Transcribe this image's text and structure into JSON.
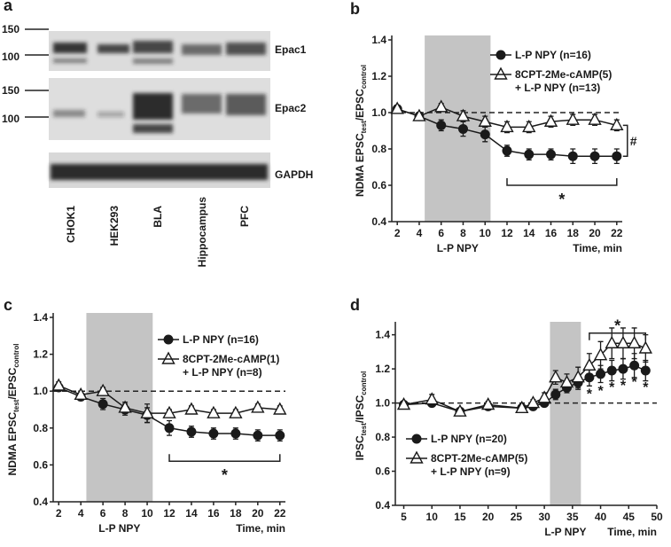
{
  "blot": {
    "panel": "a",
    "markers": [
      "150",
      "100",
      "150",
      "100"
    ],
    "proteins": [
      "Epac1",
      "Epac2",
      "GAPDH"
    ],
    "lanes": [
      "CHOK1",
      "HEK293",
      "BLA",
      "Hippocampus",
      "PFC"
    ]
  },
  "chart_data": [
    {
      "type": "line",
      "panel": "b",
      "ylabel": [
        "NDMA EPSC",
        "test",
        "/EPSC",
        "control"
      ],
      "xlabel_left": "L-P NPY",
      "xlabel_right": "Time, min",
      "xlim": [
        1.5,
        22.5
      ],
      "xticks": [
        2,
        4,
        6,
        8,
        10,
        12,
        14,
        16,
        18,
        20,
        22
      ],
      "ylim": [
        0.4,
        1.4
      ],
      "yticks": [
        0.4,
        0.6,
        0.8,
        {
          "value": 1,
          "label": "1.0"
        },
        1.2,
        1.4
      ],
      "shade": [
        4.5,
        10.5
      ],
      "reference": 1,
      "x": [
        2,
        4,
        6,
        8,
        10,
        12,
        14,
        16,
        18,
        20,
        22
      ],
      "series": [
        {
          "name": [
            "L-P NPY (n=16)"
          ],
          "marker": "circle",
          "color": "#1a1a1a",
          "values": [
            1.02,
            0.98,
            0.93,
            0.91,
            0.88,
            0.79,
            0.77,
            0.77,
            0.76,
            0.76,
            0.76
          ],
          "errors": [
            0.02,
            0.02,
            0.03,
            0.04,
            0.04,
            0.03,
            0.03,
            0.03,
            0.04,
            0.04,
            0.04
          ]
        },
        {
          "name": [
            "8CPT-2Me-cAMP(5)",
            "+ L-P NPY (n=13)"
          ],
          "marker": "triangle",
          "color": "#1a1a1a",
          "values": [
            1.02,
            0.98,
            1.03,
            0.98,
            0.95,
            0.92,
            0.92,
            0.95,
            0.96,
            0.96,
            0.93
          ],
          "errors": [
            0.02,
            0.02,
            0.02,
            0.03,
            0.03,
            0.03,
            0.03,
            0.03,
            0.03,
            0.03,
            0.03
          ]
        }
      ],
      "bracket": {
        "x": [
          12,
          22
        ],
        "label": "*"
      },
      "end_label": "#"
    },
    {
      "type": "line",
      "panel": "c",
      "ylabel": [
        "NDMA EPSC",
        "test",
        "/EPSC",
        "control"
      ],
      "xlabel_left": "L-P NPY",
      "xlabel_right": "Time, min",
      "xlim": [
        1.5,
        22.5
      ],
      "xticks": [
        2,
        4,
        6,
        8,
        10,
        12,
        14,
        16,
        18,
        20,
        22
      ],
      "ylim": [
        0.4,
        1.4
      ],
      "yticks": [
        0.4,
        0.6,
        0.8,
        {
          "value": 1,
          "label": "1.0"
        },
        1.2,
        1.4
      ],
      "shade": [
        4.5,
        10.5
      ],
      "reference": 1,
      "x": [
        2,
        4,
        6,
        8,
        10,
        12,
        14,
        16,
        18,
        20,
        22
      ],
      "series": [
        {
          "name": [
            "L-P NPY (n=16)"
          ],
          "marker": "circle",
          "color": "#1a1a1a",
          "values": [
            1.02,
            0.97,
            0.93,
            0.9,
            0.87,
            0.8,
            0.78,
            0.77,
            0.77,
            0.76,
            0.76
          ],
          "errors": [
            0.02,
            0.02,
            0.03,
            0.03,
            0.04,
            0.04,
            0.03,
            0.03,
            0.03,
            0.03,
            0.03
          ]
        },
        {
          "name": [
            "8CPT-2Me-cAMP(1)",
            "+ L-P NPY (n=8)"
          ],
          "marker": "triangle",
          "color": "#1a1a1a",
          "values": [
            1.03,
            0.98,
            1.0,
            0.91,
            0.88,
            0.88,
            0.9,
            0.88,
            0.88,
            0.91,
            0.9
          ],
          "errors": [
            0.02,
            0.02,
            0.02,
            0.03,
            0.05,
            0.02,
            0.02,
            0.02,
            0.02,
            0.02,
            0.02
          ]
        }
      ],
      "bracket": {
        "x": [
          12,
          22
        ],
        "label": "*"
      }
    },
    {
      "type": "line",
      "panel": "d",
      "ylabel": [
        "IPSC",
        "test",
        "/IPSC",
        "control"
      ],
      "xlabel_left": "L-P NPY",
      "xlabel_right": "Time, min",
      "xlim": [
        3.5,
        50
      ],
      "xticks": [
        5,
        10,
        15,
        20,
        25,
        30,
        35,
        40,
        45,
        50
      ],
      "ylim": [
        0.4,
        1.45
      ],
      "yticks": [
        0.4,
        0.6,
        0.8,
        {
          "value": 1,
          "label": "1.0"
        },
        1.2,
        1.4
      ],
      "shade": [
        31,
        36.5
      ],
      "reference": 1,
      "x": [
        5,
        10,
        15,
        20,
        26,
        28,
        30,
        32,
        34,
        36,
        38,
        40,
        42,
        44,
        46,
        48
      ],
      "series": [
        {
          "name": [
            "L-P NPY (n=20)"
          ],
          "marker": "circle",
          "color": "#1a1a1a",
          "values": [
            0.99,
            1.0,
            0.95,
            0.98,
            0.97,
            0.98,
            1.0,
            1.05,
            1.09,
            1.12,
            1.15,
            1.17,
            1.19,
            1.2,
            1.22,
            1.19
          ],
          "errors": [
            0.02,
            0.02,
            0.02,
            0.02,
            0.02,
            0.02,
            0.02,
            0.03,
            0.03,
            0.04,
            0.05,
            0.05,
            0.06,
            0.06,
            0.07,
            0.06
          ]
        },
        {
          "name": [
            "8CPT-2Me-cAMP(5)",
            "+ L-P NPY (n=9)"
          ],
          "marker": "triangle",
          "color": "#1a1a1a",
          "values": [
            0.99,
            1.02,
            0.95,
            0.99,
            0.97,
            1.0,
            1.03,
            1.15,
            1.12,
            1.15,
            1.22,
            1.28,
            1.35,
            1.35,
            1.35,
            1.32
          ],
          "errors": [
            0.02,
            0.03,
            0.02,
            0.02,
            0.02,
            0.02,
            0.03,
            0.04,
            0.05,
            0.06,
            0.07,
            0.08,
            0.09,
            0.09,
            0.09,
            0.08
          ]
        }
      ],
      "bracket": {
        "x": [
          38,
          48
        ],
        "label": "*"
      },
      "point_labels": {
        "label": "*",
        "x": [
          38,
          40,
          42,
          44,
          46,
          48
        ]
      }
    }
  ]
}
